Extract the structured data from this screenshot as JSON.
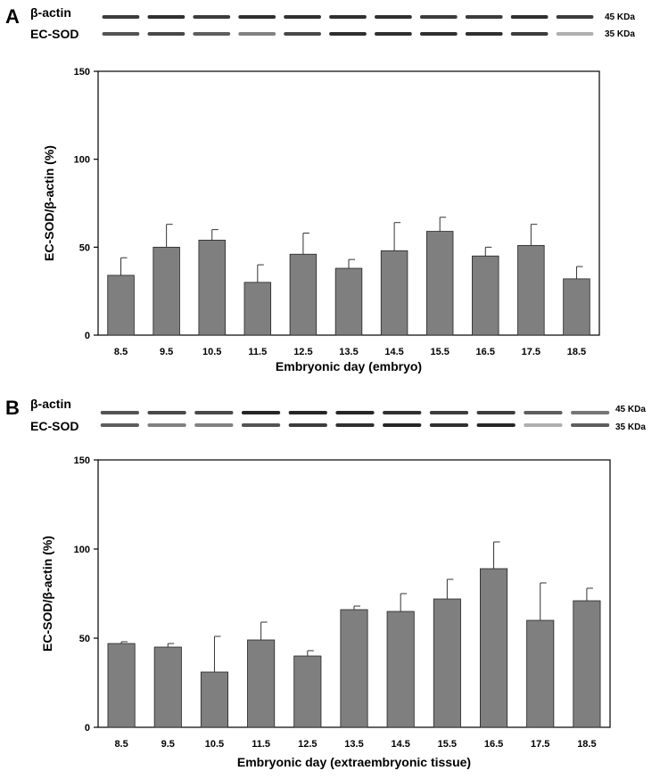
{
  "panels": [
    {
      "letter": "A",
      "blot": {
        "row1_label": "β-actin",
        "row2_label": "EC-SOD",
        "row1_kda": "45 KDa",
        "row2_kda": "35 KDa"
      }
    },
    {
      "letter": "B",
      "blot": {
        "row1_label": "β-actin",
        "row2_label": "EC-SOD",
        "row1_kda": "45 KDa",
        "row2_kda": "35 KDa"
      }
    }
  ],
  "colors": {
    "bar": "#7f7f7f",
    "bar_edge": "#222222",
    "band": "#1a1a1a"
  },
  "chart_data": [
    {
      "type": "bar",
      "categories": [
        "8.5",
        "9.5",
        "10.5",
        "11.5",
        "12.5",
        "13.5",
        "14.5",
        "15.5",
        "16.5",
        "17.5",
        "18.5"
      ],
      "values": [
        34,
        50,
        54,
        30,
        46,
        38,
        48,
        59,
        45,
        51,
        32
      ],
      "errors": [
        10,
        13,
        6,
        10,
        12,
        5,
        16,
        8,
        5,
        12,
        7
      ],
      "xlabel": "Embryonic day (embryo)",
      "ylabel": "EC-SOD/β-actin (%)",
      "ylim": [
        0,
        150
      ],
      "yticks": [
        0,
        50,
        100,
        150
      ],
      "grid": false
    },
    {
      "type": "bar",
      "categories": [
        "8.5",
        "9.5",
        "10.5",
        "11.5",
        "12.5",
        "13.5",
        "14.5",
        "15.5",
        "16.5",
        "17.5",
        "18.5"
      ],
      "values": [
        47,
        45,
        31,
        49,
        40,
        66,
        65,
        72,
        89,
        60,
        71
      ],
      "errors": [
        1,
        2,
        20,
        10,
        3,
        2,
        10,
        11,
        15,
        21,
        7
      ],
      "xlabel": "Embryonic day (extraembryonic tissue)",
      "ylabel": "EC-SOD/β-actin (%)",
      "ylim": [
        0,
        150
      ],
      "yticks": [
        0,
        50,
        100,
        150
      ],
      "grid": false
    }
  ]
}
